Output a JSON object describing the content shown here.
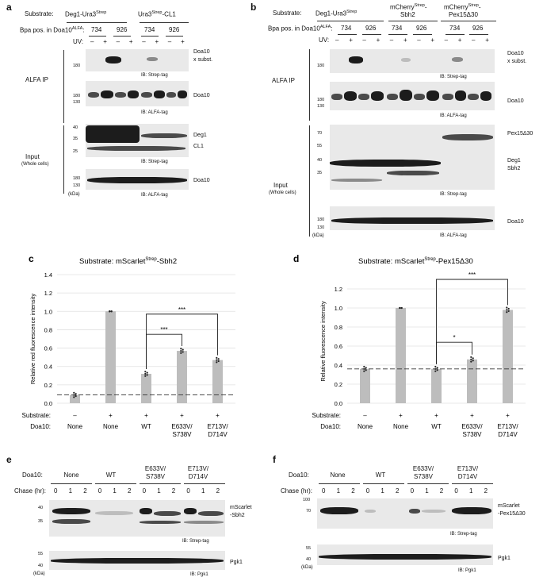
{
  "panels": {
    "a": {
      "letter": "a",
      "substrate_label": "Substrate:",
      "substrates": [
        "Deg1-Ura3",
        "Ura3",
        "-CL1"
      ],
      "sup_strep": "Strep",
      "bpa_label": "Bpa pos. in Doa10",
      "bpa_sup": "ALFA",
      "bpa_positions": [
        "734",
        "926",
        "734",
        "926"
      ],
      "uv_label": "UV:",
      "uv_signs": [
        "–",
        "+",
        "–",
        "+",
        "–",
        "+",
        "–",
        "+"
      ],
      "alfa_ip": "ALFA IP",
      "input": "Input",
      "whole_cells": "(Whole cells)",
      "kda": "(kDa)",
      "markers": [
        "180",
        "180",
        "130",
        "40",
        "35",
        "25",
        "180",
        "130"
      ],
      "right_labels": [
        "Doa10",
        "x subst.",
        "Doa10",
        "Deg1",
        "CL1",
        "Doa10"
      ],
      "ib": [
        "IB: Strep-tag",
        "IB: ALFA-tag",
        "IB: Strep-tag",
        "IB: ALFA-tag"
      ]
    },
    "b": {
      "letter": "b",
      "substrate_label": "Substrate:",
      "substrates": [
        "Deg1-Ura3",
        "mCherry",
        "-",
        "Sbh2",
        "mCherry",
        "-",
        "Pex15Δ30"
      ],
      "sup_strep": "Strep",
      "bpa_label": "Bpa pos. in Doa10",
      "bpa_sup": "ALFA",
      "bpa_positions": [
        "734",
        "926",
        "734",
        "926",
        "734",
        "926"
      ],
      "uv_label": "UV:",
      "uv_signs": [
        "–",
        "+",
        "–",
        "+",
        "–",
        "+",
        "–",
        "+",
        "–",
        "+",
        "–",
        "+"
      ],
      "alfa_ip": "ALFA IP",
      "input": "Input",
      "whole_cells": "(Whole cells)",
      "kda": "(kDa)",
      "markers": [
        "180",
        "180",
        "130",
        "70",
        "55",
        "40",
        "35",
        "180",
        "130"
      ],
      "right_labels": [
        "Doa10",
        "x subst.",
        "Doa10",
        "Pex15Δ30",
        "Deg1",
        "Sbh2",
        "Doa10"
      ],
      "ib": [
        "IB: Strep-tag",
        "IB: ALFA-tag",
        "IB: Strep-tag",
        "IB: ALFA-tag"
      ]
    },
    "e": {
      "letter": "e",
      "doa10_label": "Doa10:",
      "groups": [
        "None",
        "WT",
        "E633V/",
        "S738V",
        "E713V/",
        "D714V"
      ],
      "chase_label": "Chase (hr):",
      "chase": [
        "0",
        "1",
        "2",
        "0",
        "1",
        "2",
        "0",
        "1",
        "2",
        "0",
        "1",
        "2"
      ],
      "markers": [
        "40",
        "35",
        "55",
        "40"
      ],
      "kda": "(kDa)",
      "right_labels": [
        "mScarlet",
        "-Sbh2",
        "Pgk1"
      ],
      "ib": [
        "IB: Strep-tag",
        "IB: Pgk1"
      ]
    },
    "f": {
      "letter": "f",
      "doa10_label": "Doa10:",
      "groups": [
        "None",
        "WT",
        "E633V/",
        "S738V",
        "E713V/",
        "D714V"
      ],
      "chase_label": "Chase (hr):",
      "chase": [
        "0",
        "1",
        "2",
        "0",
        "1",
        "2",
        "0",
        "1",
        "2",
        "0",
        "1",
        "2"
      ],
      "markers": [
        "100",
        "70",
        "55",
        "40"
      ],
      "kda": "(kDa)",
      "right_labels": [
        "mScarlet",
        "-Pex15Δ30",
        "Pgk1"
      ],
      "ib": [
        "IB: Strep-tag",
        "IB: Pgk1"
      ]
    }
  },
  "chart_data": [
    {
      "type": "bar",
      "letter": "c",
      "title": "Substrate: mScarlet",
      "title_sup": "Strep",
      "title_suffix": "-Sbh2",
      "ylabel": "Relative red fluorescence intensity",
      "ylim": [
        0,
        1.4
      ],
      "yticks": [
        "0.0",
        "0.2",
        "0.4",
        "0.6",
        "0.8",
        "1.0",
        "1.2",
        "1.4"
      ],
      "ytick_values": [
        0.0,
        0.2,
        0.4,
        0.6,
        0.8,
        1.0,
        1.2,
        1.4
      ],
      "values": [
        0.09,
        1.0,
        0.32,
        0.57,
        0.47
      ],
      "baseline": 0.09,
      "substrate_row_label": "Substrate:",
      "substrate_signs": [
        "–",
        "+",
        "+",
        "+",
        "+"
      ],
      "doa10_row_label": "Doa10:",
      "categories": [
        "None",
        "None",
        "WT",
        "E633V/",
        "E713V/"
      ],
      "categories_line2": [
        "",
        "",
        "",
        "S738V",
        "D714V"
      ],
      "significance": [
        {
          "from": 2,
          "to": 3,
          "label": "***"
        },
        {
          "from": 2,
          "to": 4,
          "label": "***"
        }
      ]
    },
    {
      "type": "bar",
      "letter": "d",
      "title": "Substrate: mScarlet",
      "title_sup": "Strep",
      "title_suffix": "-Pex15Δ30",
      "ylabel": "Relative fluorescence intensity",
      "ylim": [
        0,
        1.3
      ],
      "yticks": [
        "0.0",
        "0.2",
        "0.4",
        "0.6",
        "0.8",
        "1.0",
        "1.2"
      ],
      "ytick_values": [
        0.0,
        0.2,
        0.4,
        0.6,
        0.8,
        1.0,
        1.2
      ],
      "values": [
        0.36,
        1.0,
        0.36,
        0.46,
        0.98
      ],
      "baseline": 0.36,
      "substrate_row_label": "Substrate:",
      "substrate_signs": [
        "–",
        "+",
        "+",
        "+",
        "+"
      ],
      "doa10_row_label": "Doa10:",
      "categories": [
        "None",
        "None",
        "WT",
        "E633V/",
        "E713V/"
      ],
      "categories_line2": [
        "",
        "",
        "",
        "S738V",
        "D714V"
      ],
      "significance": [
        {
          "from": 2,
          "to": 3,
          "label": "*"
        },
        {
          "from": 2,
          "to": 4,
          "label": "***"
        }
      ]
    }
  ]
}
